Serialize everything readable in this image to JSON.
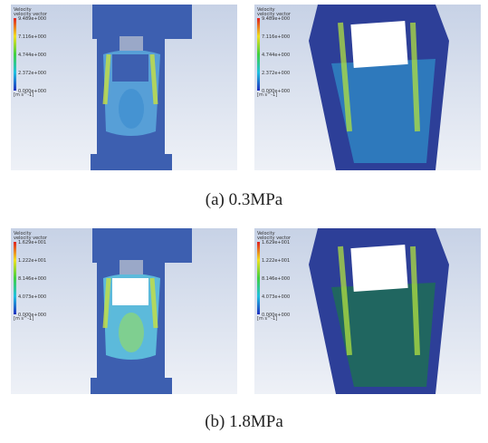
{
  "figures": [
    {
      "caption": "(a) 0.3MPa",
      "panels": [
        {
          "title": "Velocity",
          "subtitle": "velocity vector",
          "legend": [
            "9.489e+000",
            "7.116e+000",
            "4.744e+000",
            "2.372e+000",
            "0.000e+000"
          ],
          "unit": "[m s^-1]"
        },
        {
          "title": "Velocity",
          "subtitle": "velocity vector",
          "legend": [
            "9.489e+000",
            "7.116e+000",
            "4.744e+000",
            "2.372e+000",
            "0.000e+000"
          ],
          "unit": "[m s^-1]"
        }
      ]
    },
    {
      "caption": "(b) 1.8MPa",
      "panels": [
        {
          "title": "Velocity",
          "subtitle": "velocity vector",
          "legend": [
            "1.629e+001",
            "1.222e+001",
            "8.146e+000",
            "4.073e+000",
            "0.000e+000"
          ],
          "unit": "[m s^-1]"
        },
        {
          "title": "Velocity",
          "subtitle": "velocity vector",
          "legend": [
            "1.629e+001",
            "1.222e+001",
            "8.146e+000",
            "4.073e+000",
            "0.000e+000"
          ],
          "unit": "[m s^-1]"
        }
      ]
    }
  ]
}
